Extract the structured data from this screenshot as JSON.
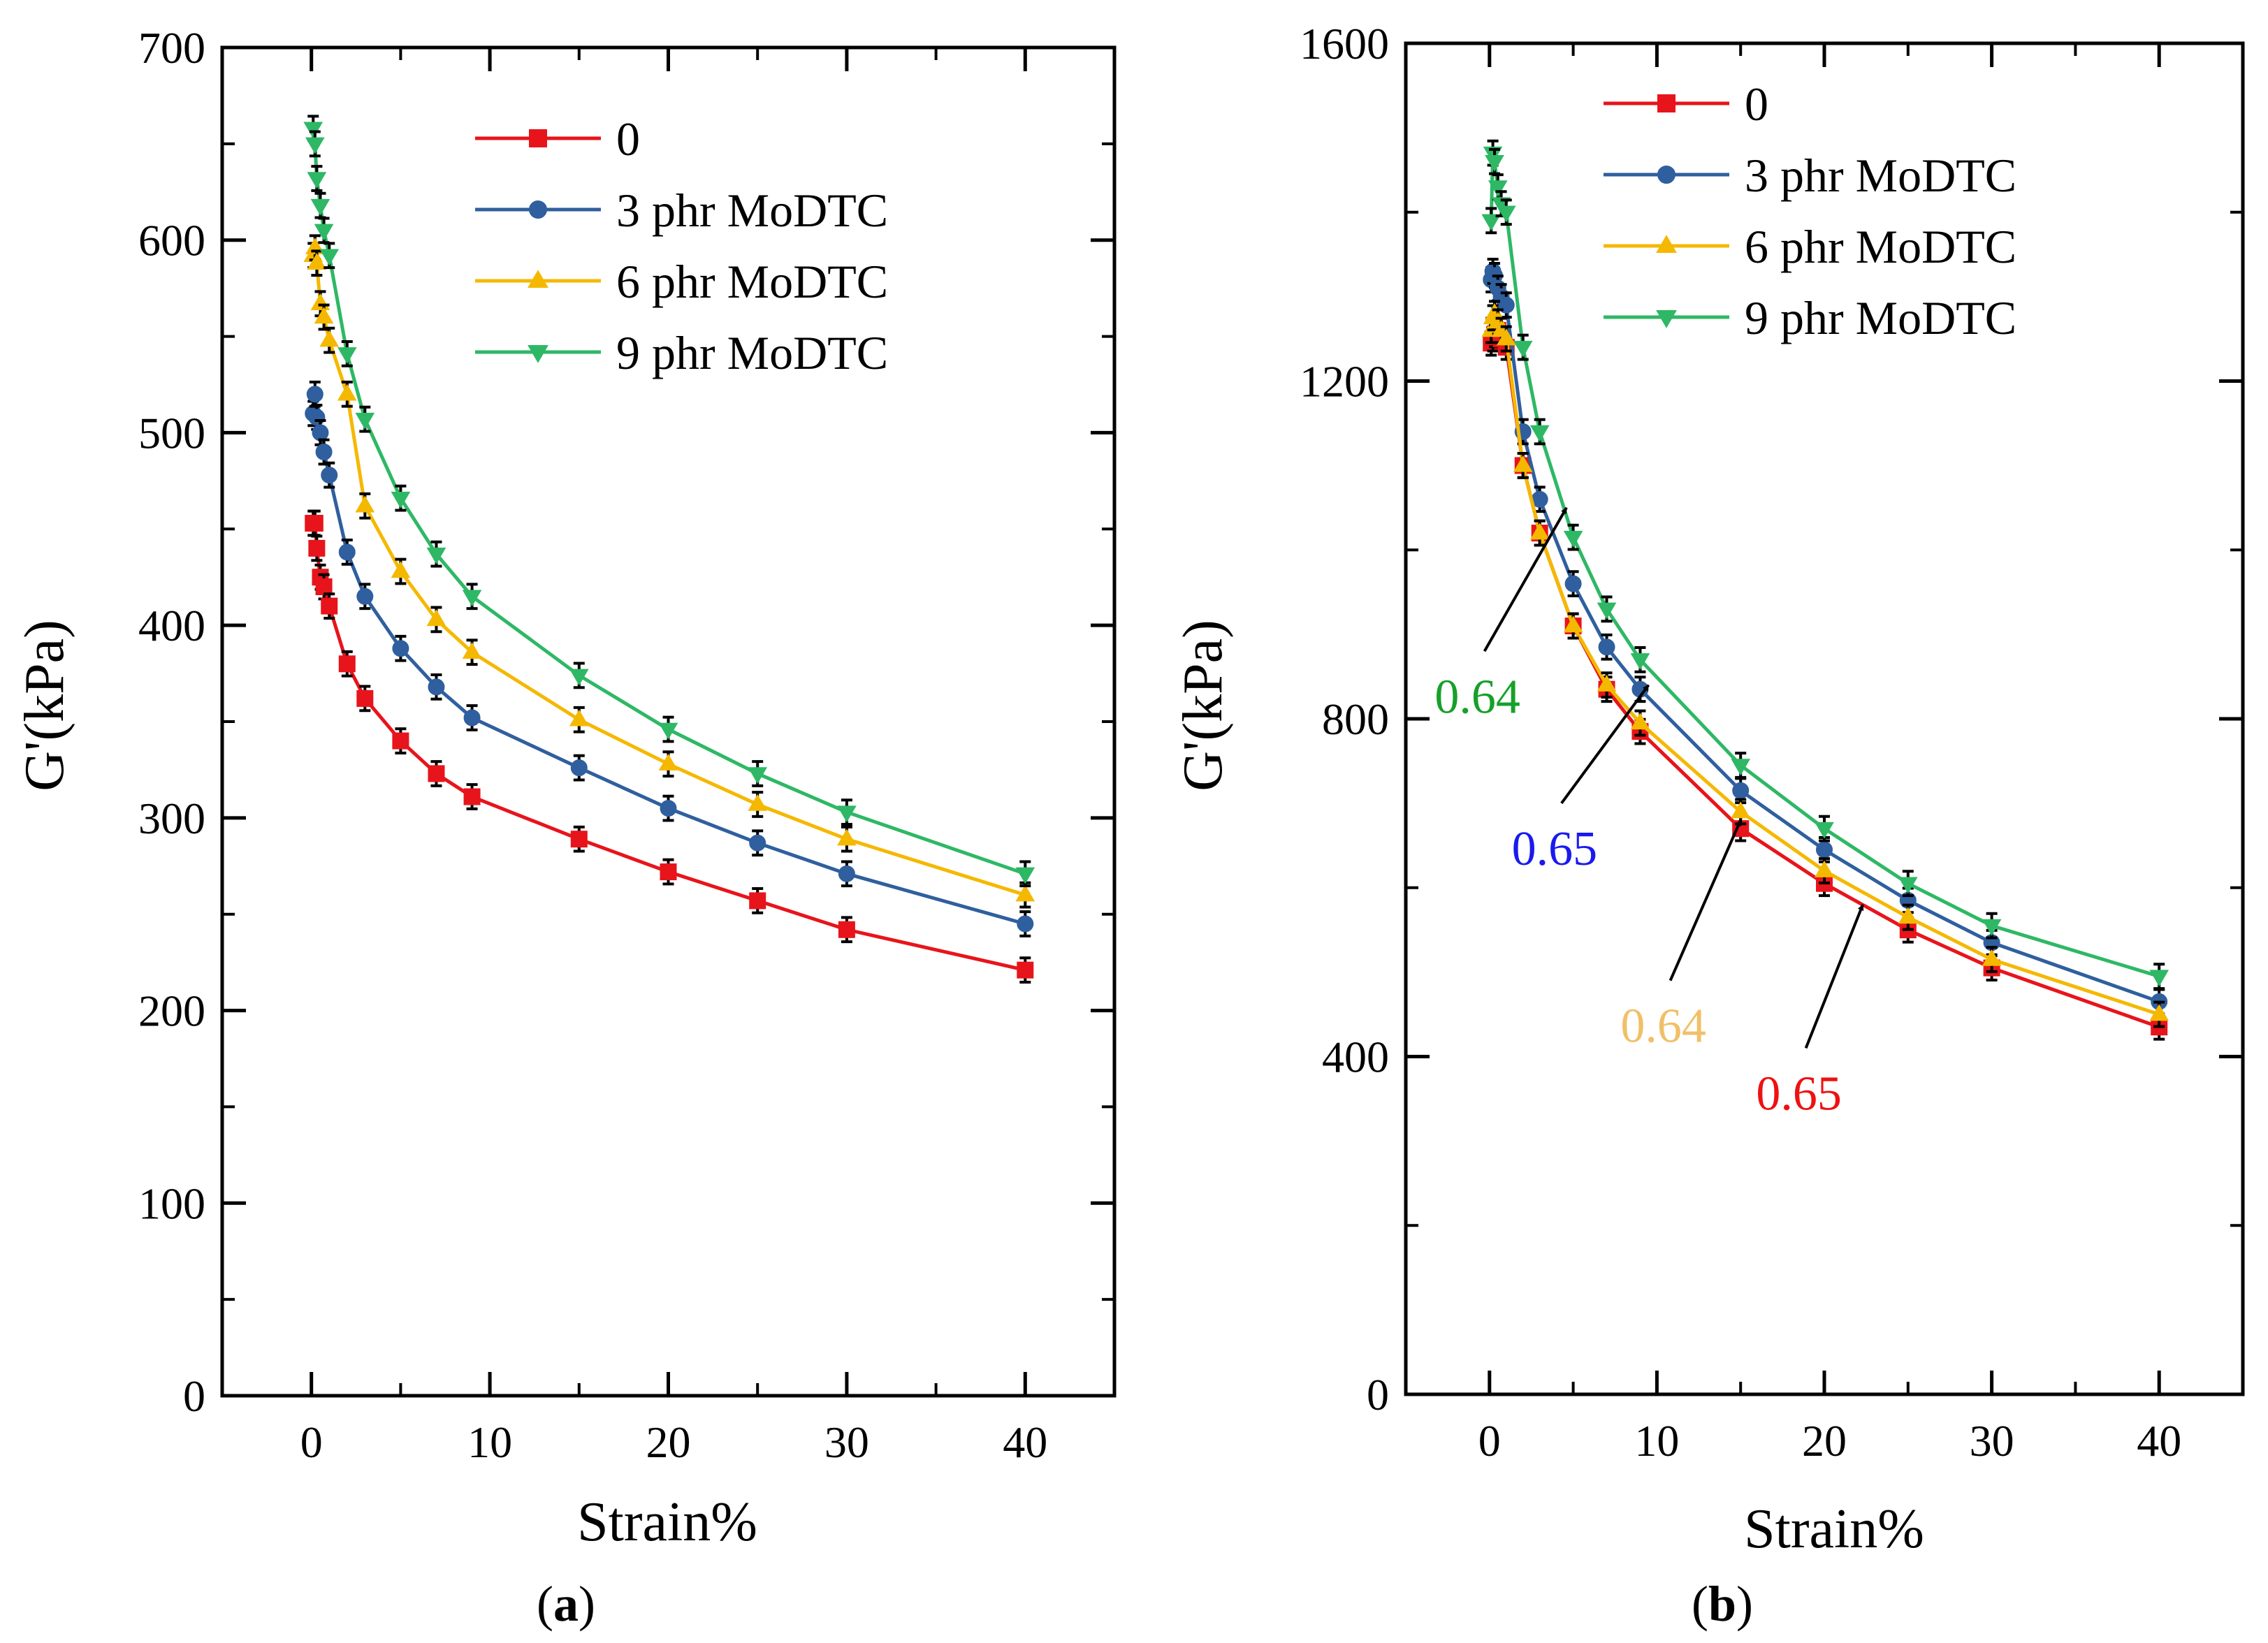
{
  "colors": {
    "series_0": "#e8141b",
    "series_3": "#2f5f9e",
    "series_6": "#f5b800",
    "series_9": "#2eb865",
    "ann_green": "#17a02a",
    "ann_blue": "#1a1aee",
    "ann_yellow": "#f0c068",
    "ann_red": "#ee1111"
  },
  "chart_data": [
    {
      "type": "line",
      "panel_label": "(a)",
      "panel_letter": "a",
      "xlabel": "Strain%",
      "ylabel": "G'(kPa)",
      "xlim": [
        -5,
        45
      ],
      "ylim": [
        0,
        700
      ],
      "xticks": [
        0,
        10,
        20,
        30,
        40
      ],
      "yticks": [
        0,
        100,
        200,
        300,
        400,
        500,
        600,
        700
      ],
      "legend_position": "top-center",
      "series": [
        {
          "name": "0",
          "marker": "square",
          "color_key": "series_0",
          "x": [
            0.1,
            0.2,
            0.3,
            0.5,
            0.7,
            1,
            2,
            3,
            5,
            7,
            9,
            15,
            20,
            25,
            30,
            40
          ],
          "y": [
            453,
            453,
            440,
            425,
            420,
            410,
            380,
            362,
            340,
            323,
            311,
            289,
            272,
            257,
            242,
            221
          ]
        },
        {
          "name": "3 phr MoDTC",
          "marker": "circle",
          "color_key": "series_3",
          "x": [
            0.1,
            0.2,
            0.3,
            0.5,
            0.7,
            1,
            2,
            3,
            5,
            7,
            9,
            15,
            20,
            25,
            30,
            40
          ],
          "y": [
            510,
            520,
            508,
            500,
            490,
            478,
            438,
            415,
            388,
            368,
            352,
            326,
            305,
            287,
            271,
            245
          ]
        },
        {
          "name": "6 phr MoDTC",
          "marker": "triangle-up",
          "color_key": "series_6",
          "x": [
            0.1,
            0.2,
            0.3,
            0.5,
            0.7,
            1,
            2,
            3,
            5,
            7,
            9,
            15,
            20,
            25,
            30,
            40
          ],
          "y": [
            592,
            596,
            588,
            567,
            560,
            548,
            520,
            462,
            428,
            403,
            386,
            351,
            328,
            307,
            289,
            260
          ]
        },
        {
          "name": "9 phr MoDTC",
          "marker": "triangle-down",
          "color_key": "series_9",
          "x": [
            0.1,
            0.2,
            0.3,
            0.5,
            0.7,
            1,
            2,
            3,
            5,
            7,
            9,
            15,
            20,
            25,
            30,
            40
          ],
          "y": [
            658,
            650,
            632,
            618,
            605,
            592,
            541,
            507,
            466,
            437,
            415,
            374,
            346,
            323,
            303,
            271
          ]
        }
      ]
    },
    {
      "type": "line",
      "panel_label": "(b)",
      "panel_letter": "b",
      "xlabel": "Strain%",
      "ylabel": "G'(kPa)",
      "xlim": [
        -5,
        45
      ],
      "ylim": [
        0,
        1600
      ],
      "xticks": [
        0,
        10,
        20,
        30,
        40
      ],
      "yticks": [
        0,
        400,
        800,
        1200,
        1600
      ],
      "legend_position": "top-center",
      "series": [
        {
          "name": "0",
          "marker": "square",
          "color_key": "series_0",
          "x": [
            0.1,
            0.2,
            0.3,
            0.5,
            0.7,
            1,
            2,
            3,
            5,
            7,
            9,
            15,
            20,
            25,
            30,
            40
          ],
          "y": [
            1245,
            1250,
            1255,
            1260,
            1250,
            1240,
            1100,
            1020,
            910,
            835,
            785,
            670,
            605,
            550,
            505,
            435
          ]
        },
        {
          "name": "3 phr MoDTC",
          "marker": "circle",
          "color_key": "series_3",
          "x": [
            0.1,
            0.2,
            0.3,
            0.5,
            0.7,
            1,
            2,
            3,
            5,
            7,
            9,
            15,
            20,
            25,
            30,
            40
          ],
          "y": [
            1320,
            1330,
            1325,
            1310,
            1300,
            1290,
            1140,
            1060,
            960,
            885,
            835,
            715,
            645,
            585,
            535,
            465
          ]
        },
        {
          "name": "6 phr MoDTC",
          "marker": "triangle-up",
          "color_key": "series_6",
          "x": [
            0.1,
            0.2,
            0.3,
            0.5,
            0.7,
            1,
            2,
            3,
            5,
            7,
            9,
            15,
            20,
            25,
            30,
            40
          ],
          "y": [
            1260,
            1275,
            1280,
            1270,
            1260,
            1250,
            1100,
            1020,
            910,
            840,
            795,
            690,
            620,
            565,
            515,
            450
          ]
        },
        {
          "name": "9 phr MoDTC",
          "marker": "triangle-down",
          "color_key": "series_9",
          "x": [
            0.1,
            0.2,
            0.3,
            0.5,
            0.7,
            1,
            2,
            3,
            5,
            7,
            9,
            15,
            20,
            25,
            30,
            40
          ],
          "y": [
            1390,
            1470,
            1460,
            1430,
            1410,
            1400,
            1240,
            1140,
            1015,
            930,
            870,
            745,
            670,
            605,
            555,
            495
          ]
        }
      ],
      "annotations": [
        {
          "text": "0.64",
          "color_key": "ann_green",
          "arrow_from": [
            -0.3,
            880
          ],
          "arrow_to": [
            4.6,
            1050
          ]
        },
        {
          "text": "0.65",
          "color_key": "ann_blue",
          "arrow_from": [
            4.3,
            700
          ],
          "arrow_to": [
            9.5,
            840
          ]
        },
        {
          "text": "0.64",
          "color_key": "ann_yellow",
          "arrow_from": [
            10.8,
            490
          ],
          "arrow_to": [
            15.0,
            680
          ]
        },
        {
          "text": "0.65",
          "color_key": "ann_red",
          "arrow_from": [
            18.9,
            410
          ],
          "arrow_to": [
            22.3,
            580
          ]
        }
      ]
    }
  ]
}
